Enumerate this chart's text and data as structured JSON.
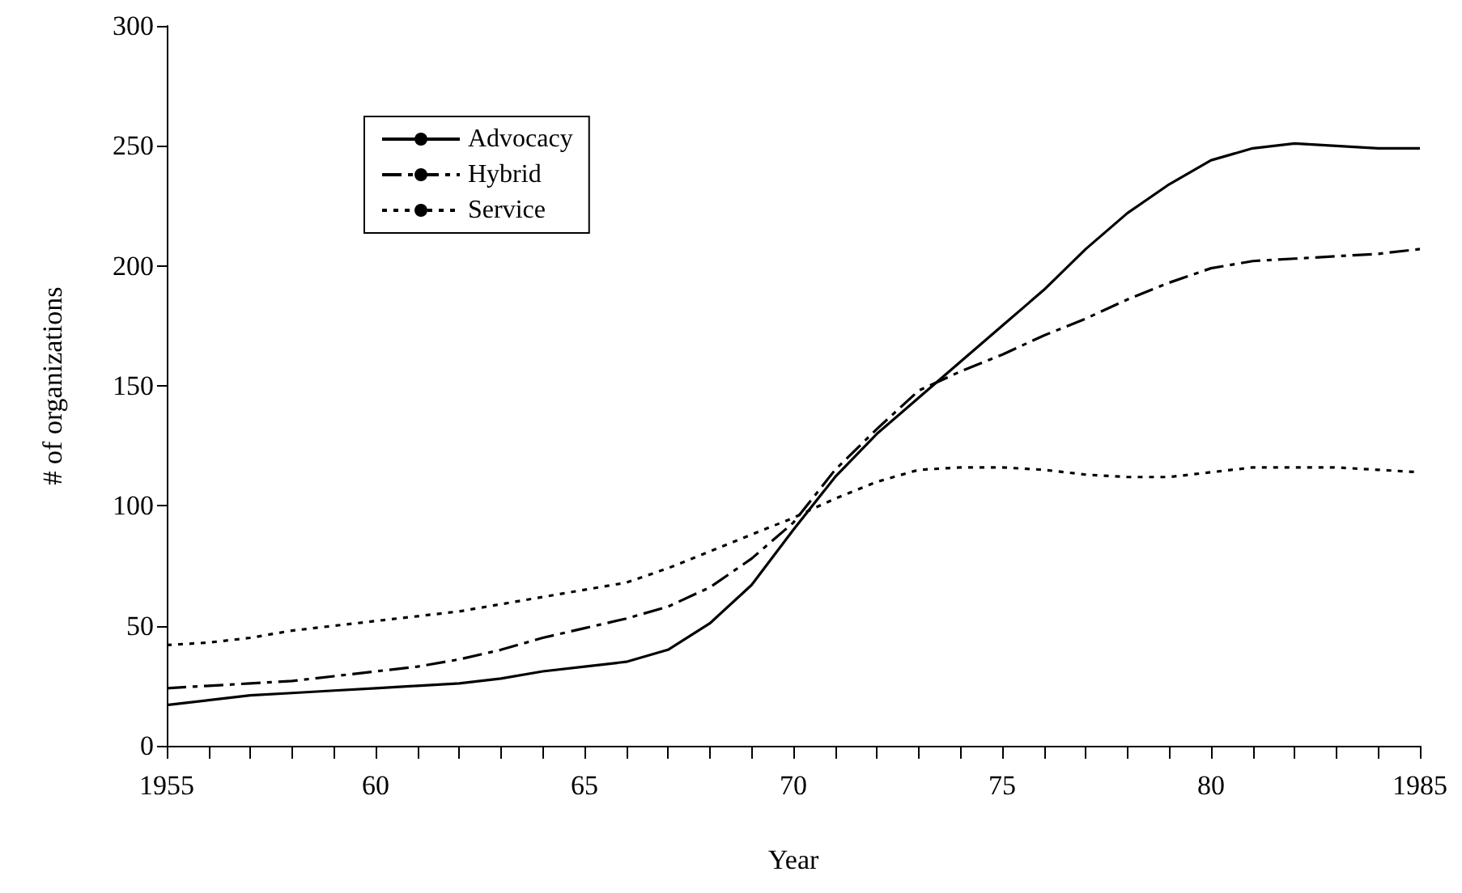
{
  "chart_data": {
    "type": "line",
    "xlabel": "Year",
    "ylabel": "# of organizations",
    "x": [
      1955,
      1956,
      1957,
      1958,
      1959,
      1960,
      1961,
      1962,
      1963,
      1964,
      1965,
      1966,
      1967,
      1968,
      1969,
      1970,
      1971,
      1972,
      1973,
      1974,
      1975,
      1976,
      1977,
      1978,
      1979,
      1980,
      1981,
      1982,
      1983,
      1984,
      1985
    ],
    "series": [
      {
        "name": "Advocacy",
        "color": "#000000",
        "line_style": "solid",
        "values": [
          17,
          19,
          21,
          22,
          23,
          24,
          25,
          26,
          28,
          31,
          33,
          35,
          40,
          51,
          67,
          90,
          112,
          130,
          145,
          160,
          175,
          190,
          207,
          222,
          234,
          244,
          249,
          251,
          250,
          249,
          249
        ]
      },
      {
        "name": "Hybrid",
        "color": "#000000",
        "line_style": "dashed",
        "values": [
          24,
          25,
          26,
          27,
          29,
          31,
          33,
          36,
          40,
          45,
          49,
          53,
          58,
          66,
          78,
          93,
          115,
          132,
          148,
          156,
          163,
          171,
          178,
          186,
          193,
          199,
          202,
          203,
          204,
          205,
          207
        ]
      },
      {
        "name": "Service",
        "color": "#000000",
        "line_style": "dotted",
        "values": [
          42,
          43,
          45,
          48,
          50,
          52,
          54,
          56,
          59,
          62,
          65,
          68,
          74,
          81,
          88,
          95,
          103,
          110,
          115,
          116,
          116,
          115,
          113,
          112,
          112,
          114,
          116,
          116,
          116,
          115,
          114
        ]
      }
    ],
    "xlim": [
      1955,
      1985
    ],
    "xticks": [
      {
        "value": 1955,
        "label": "1955"
      },
      {
        "value": 1956,
        "label": null
      },
      {
        "value": 1957,
        "label": null
      },
      {
        "value": 1958,
        "label": null
      },
      {
        "value": 1959,
        "label": null
      },
      {
        "value": 1960,
        "label": "60"
      },
      {
        "value": 1961,
        "label": null
      },
      {
        "value": 1962,
        "label": null
      },
      {
        "value": 1963,
        "label": null
      },
      {
        "value": 1964,
        "label": null
      },
      {
        "value": 1965,
        "label": "65"
      },
      {
        "value": 1966,
        "label": null
      },
      {
        "value": 1967,
        "label": null
      },
      {
        "value": 1968,
        "label": null
      },
      {
        "value": 1969,
        "label": null
      },
      {
        "value": 1970,
        "label": "70"
      },
      {
        "value": 1971,
        "label": null
      },
      {
        "value": 1972,
        "label": null
      },
      {
        "value": 1973,
        "label": null
      },
      {
        "value": 1974,
        "label": null
      },
      {
        "value": 1975,
        "label": "75"
      },
      {
        "value": 1976,
        "label": null
      },
      {
        "value": 1977,
        "label": null
      },
      {
        "value": 1978,
        "label": null
      },
      {
        "value": 1979,
        "label": null
      },
      {
        "value": 1980,
        "label": "80"
      },
      {
        "value": 1981,
        "label": null
      },
      {
        "value": 1982,
        "label": null
      },
      {
        "value": 1983,
        "label": null
      },
      {
        "value": 1984,
        "label": null
      },
      {
        "value": 1985,
        "label": "1985"
      }
    ],
    "ylim": [
      0,
      300
    ],
    "yticks": [
      0,
      50,
      100,
      150,
      200,
      250,
      300
    ],
    "grid": false,
    "legend": "top left",
    "marker": "none"
  }
}
